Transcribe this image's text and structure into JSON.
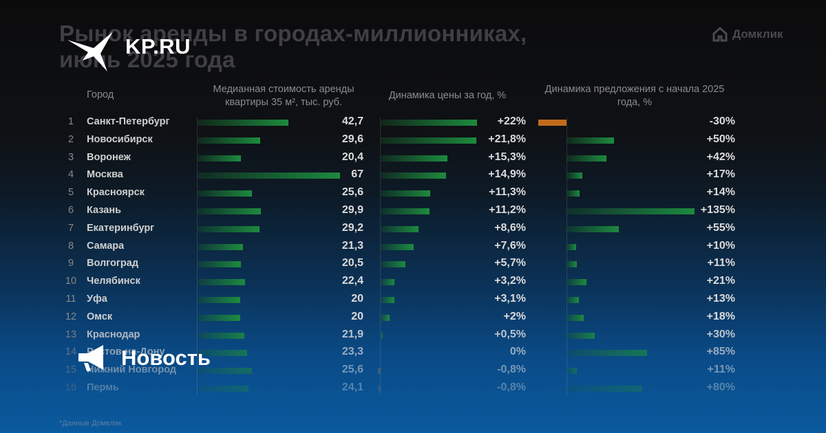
{
  "title_line1": "Рынок аренды в городах-миллионниках,",
  "title_line2": "июнь 2025 года",
  "brand_logo": "Домклик",
  "kp_logo": "KP.RU",
  "badge": "Новость",
  "footnote": "*Данные Домклик",
  "headers": {
    "city": "Город",
    "rent": "Медианная стоимость аренды квартиры 35 м², тыс. руб.",
    "price": "Динамика цены за год, %",
    "supply": "Динамика предложения с начала 2025 года, %"
  },
  "colors": {
    "positive": "#1d8a3e",
    "negative": "#c26a1d",
    "text": "#dcdcdc"
  },
  "chart_data": {
    "type": "table",
    "categories": [
      "Санкт-Петербург",
      "Новосибирск",
      "Воронеж",
      "Москва",
      "Красноярск",
      "Казань",
      "Екатеринбург",
      "Самара",
      "Волгоград",
      "Челябинск",
      "Уфа",
      "Омск",
      "Краснодар",
      "Ростов-на-Дону",
      "Нижний Новгород",
      "Пермь"
    ],
    "series": [
      {
        "name": "Медианная стоимость аренды квартиры 35 м², тыс. руб.",
        "values": [
          42.7,
          29.6,
          20.4,
          67,
          25.6,
          29.9,
          29.2,
          21.3,
          20.5,
          22.4,
          20,
          20,
          21.9,
          23.3,
          25.6,
          24.1
        ],
        "labels": [
          "42,7",
          "29,6",
          "20,4",
          "67",
          "25,6",
          "29,9",
          "29,2",
          "21,3",
          "20,5",
          "22,4",
          "20",
          "20",
          "21,9",
          "23,3",
          "25,6",
          "24,1"
        ]
      },
      {
        "name": "Динамика цены за год, %",
        "values": [
          22,
          21.8,
          15.3,
          14.9,
          11.3,
          11.2,
          8.6,
          7.6,
          5.7,
          3.2,
          3.1,
          2,
          0.5,
          0,
          -0.8,
          -0.8
        ],
        "labels": [
          "+22%",
          "+21,8%",
          "+15,3%",
          "+14,9%",
          "+11,3%",
          "+11,2%",
          "+8,6%",
          "+7,6%",
          "+5,7%",
          "+3,2%",
          "+3,1%",
          "+2%",
          "+0,5%",
          "0%",
          "-0,8%",
          "-0,8%"
        ]
      },
      {
        "name": "Динамика предложения с начала 2025 года, %",
        "values": [
          -30,
          50,
          42,
          17,
          14,
          135,
          55,
          10,
          11,
          21,
          13,
          18,
          30,
          85,
          11,
          80
        ],
        "labels": [
          "-30%",
          "+50%",
          "+42%",
          "+17%",
          "+14%",
          "+135%",
          "+55%",
          "+10%",
          "+11%",
          "+21%",
          "+13%",
          "+18%",
          "+30%",
          "+85%",
          "+11%",
          "+80%"
        ]
      }
    ]
  }
}
